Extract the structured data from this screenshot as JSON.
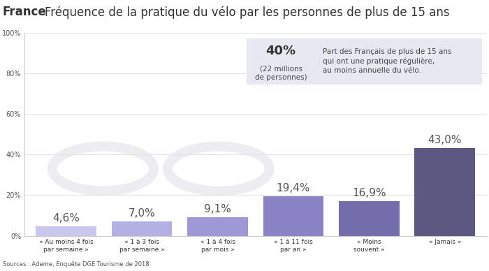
{
  "chart_data": {
    "type": "bar",
    "title": "France",
    "subtitle": "Fréquence de la pratique du vélo par les personnes de plus de 15 ans",
    "categories": [
      "« Au moins 4 fois\npar semaine »",
      "« 1 à 3 fois\npar semaine »",
      "« 1 à 4 fois\npar mois »",
      "« 1 à 11 fois\npar an »",
      "« Moins\nsouvent »",
      "« Jamais »"
    ],
    "values": [
      4.6,
      7.0,
      9.1,
      19.4,
      16.9,
      43.0
    ],
    "value_labels": [
      "4,6%",
      "7,0%",
      "9,1%",
      "19,4%",
      "16,9%",
      "43,0%"
    ],
    "colors": [
      "#c9c7ee",
      "#b3b0e4",
      "#9d99d6",
      "#8883c5",
      "#736eab",
      "#5d5882"
    ],
    "data_labels": true,
    "ylim": [
      0,
      100
    ],
    "yticks": [
      {
        "value": 0,
        "label": "0%"
      },
      {
        "value": 20,
        "label": "20%"
      },
      {
        "value": 40,
        "label": "40%"
      },
      {
        "value": 60,
        "label": "60%"
      },
      {
        "value": 80,
        "label": "80%"
      },
      {
        "value": 100,
        "label": "100%"
      }
    ],
    "grid": true,
    "annotations": [
      "40%",
      "(22 millions\nde personnes)",
      "Part des Français de plus de 15 ans\nqui ont une pratique régulière,\nau moins annuelle du vélo."
    ],
    "source": "Sources : Ademe, Enquête DGE Tourisme de 2018"
  }
}
